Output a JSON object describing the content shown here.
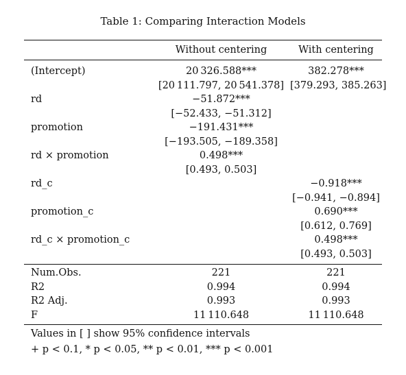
{
  "caption": "Table 1: Comparing Interaction Models",
  "columns": [
    "",
    "Without centering",
    "With centering"
  ],
  "coef_rows": [
    {
      "label": "(Intercept)",
      "m1": "20 326.588***",
      "m2": "382.278***"
    },
    {
      "label": "",
      "m1": "[20 111.797, 20 541.378]",
      "m2": "[379.293, 385.263]"
    },
    {
      "label": "rd",
      "m1": "−51.872***",
      "m2": ""
    },
    {
      "label": "",
      "m1": "[−52.433, −51.312]",
      "m2": ""
    },
    {
      "label": "promotion",
      "m1": "−191.431***",
      "m2": ""
    },
    {
      "label": "",
      "m1": "[−193.505, −189.358]",
      "m2": ""
    },
    {
      "label": "rd × promotion",
      "m1": "0.498***",
      "m2": ""
    },
    {
      "label": "",
      "m1": "[0.493, 0.503]",
      "m2": ""
    },
    {
      "label": "rd_c",
      "m1": "",
      "m2": "−0.918***"
    },
    {
      "label": "",
      "m1": "",
      "m2": "[−0.941, −0.894]"
    },
    {
      "label": "promotion_c",
      "m1": "",
      "m2": "0.690***"
    },
    {
      "label": "",
      "m1": "",
      "m2": "[0.612, 0.769]"
    },
    {
      "label": "rd_c × promotion_c",
      "m1": "",
      "m2": "0.498***"
    },
    {
      "label": "",
      "m1": "",
      "m2": "[0.493, 0.503]"
    }
  ],
  "gof_rows": [
    {
      "label": "Num.Obs.",
      "m1": "221",
      "m2": "221"
    },
    {
      "label": "R2",
      "m1": "0.994",
      "m2": "0.994"
    },
    {
      "label": "R2 Adj.",
      "m1": "0.993",
      "m2": "0.993"
    },
    {
      "label": "F",
      "m1": "11 110.648",
      "m2": "11 110.648"
    }
  ],
  "notes": [
    "Values in [ ] show 95% confidence intervals",
    "+ p < 0.1, * p < 0.05, ** p < 0.01, *** p < 0.001"
  ]
}
